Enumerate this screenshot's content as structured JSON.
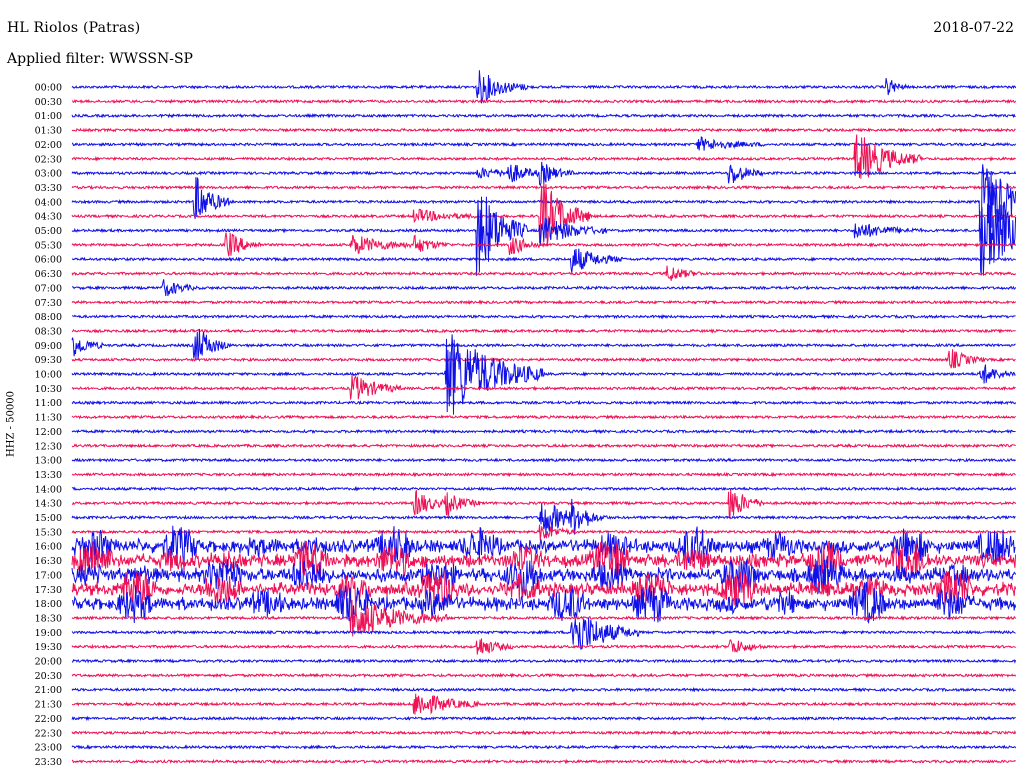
{
  "header": {
    "station": "HL Riolos (Patras)",
    "date": "2018-07-22",
    "filter": "Applied filter: WWSSN-SP"
  },
  "chart_data": {
    "type": "line",
    "title": "HL Riolos (Patras)",
    "ylabel": "HHZ - 50000",
    "colors": {
      "even_rows": "#1010e8",
      "odd_rows": "#ee1155"
    },
    "rows": [
      "00:00",
      "00:30",
      "01:00",
      "01:30",
      "02:00",
      "02:30",
      "03:00",
      "03:30",
      "04:00",
      "04:30",
      "05:00",
      "05:30",
      "06:00",
      "06:30",
      "07:00",
      "07:30",
      "08:00",
      "08:30",
      "09:00",
      "09:30",
      "10:00",
      "10:30",
      "11:00",
      "11:30",
      "12:00",
      "12:30",
      "13:00",
      "13:30",
      "14:00",
      "14:30",
      "15:00",
      "15:30",
      "16:00",
      "16:30",
      "17:00",
      "17:30",
      "18:00",
      "18:30",
      "19:00",
      "19:30",
      "20:00",
      "20:30",
      "21:00",
      "21:30",
      "22:00",
      "22:30",
      "23:00",
      "23:30"
    ],
    "row_minutes": 30,
    "events": [
      {
        "row": 0,
        "minute": 13,
        "amplitude": 1.0,
        "duration": 1.5
      },
      {
        "row": 0,
        "minute": 26,
        "amplitude": 0.5,
        "duration": 0.5
      },
      {
        "row": 4,
        "minute": 20,
        "amplitude": 0.4,
        "duration": 2
      },
      {
        "row": 5,
        "minute": 25,
        "amplitude": 1.6,
        "duration": 2
      },
      {
        "row": 6,
        "minute": 13,
        "amplitude": 0.3,
        "duration": 2
      },
      {
        "row": 6,
        "minute": 14,
        "amplitude": 0.5,
        "duration": 1
      },
      {
        "row": 6,
        "minute": 15,
        "amplitude": 0.6,
        "duration": 1
      },
      {
        "row": 6,
        "minute": 21,
        "amplitude": 0.7,
        "duration": 1
      },
      {
        "row": 8,
        "minute": 4,
        "amplitude": 1.5,
        "duration": 1
      },
      {
        "row": 8,
        "minute": 29,
        "amplitude": 2.5,
        "duration": 2
      },
      {
        "row": 9,
        "minute": 11,
        "amplitude": 0.4,
        "duration": 2
      },
      {
        "row": 9,
        "minute": 15,
        "amplitude": 2.2,
        "duration": 1.5
      },
      {
        "row": 10,
        "minute": 13,
        "amplitude": 2.8,
        "duration": 1.5
      },
      {
        "row": 10,
        "minute": 15,
        "amplitude": 0.9,
        "duration": 2
      },
      {
        "row": 10,
        "minute": 25,
        "amplitude": 0.5,
        "duration": 2
      },
      {
        "row": 10,
        "minute": 29,
        "amplitude": 3.0,
        "duration": 2
      },
      {
        "row": 11,
        "minute": 5,
        "amplitude": 0.8,
        "duration": 1
      },
      {
        "row": 11,
        "minute": 9,
        "amplitude": 0.6,
        "duration": 2
      },
      {
        "row": 11,
        "minute": 11,
        "amplitude": 0.5,
        "duration": 1
      },
      {
        "row": 11,
        "minute": 14,
        "amplitude": 0.6,
        "duration": 1
      },
      {
        "row": 12,
        "minute": 16,
        "amplitude": 0.8,
        "duration": 1.5
      },
      {
        "row": 13,
        "minute": 19,
        "amplitude": 0.5,
        "duration": 1
      },
      {
        "row": 14,
        "minute": 3,
        "amplitude": 0.5,
        "duration": 1
      },
      {
        "row": 18,
        "minute": 0,
        "amplitude": 0.8,
        "duration": 1
      },
      {
        "row": 18,
        "minute": 4,
        "amplitude": 1.2,
        "duration": 1
      },
      {
        "row": 19,
        "minute": 28,
        "amplitude": 0.6,
        "duration": 1
      },
      {
        "row": 20,
        "minute": 12,
        "amplitude": 2.8,
        "duration": 3
      },
      {
        "row": 20,
        "minute": 29,
        "amplitude": 0.6,
        "duration": 1
      },
      {
        "row": 21,
        "minute": 9,
        "amplitude": 0.8,
        "duration": 1.5
      },
      {
        "row": 29,
        "minute": 11,
        "amplitude": 0.8,
        "duration": 1
      },
      {
        "row": 29,
        "minute": 12,
        "amplitude": 0.6,
        "duration": 1
      },
      {
        "row": 29,
        "minute": 21,
        "amplitude": 1.0,
        "duration": 1
      },
      {
        "row": 30,
        "minute": 15,
        "amplitude": 1.2,
        "duration": 1.5
      },
      {
        "row": 30,
        "minute": 16,
        "amplitude": 0.8,
        "duration": 1
      },
      {
        "row": 31,
        "minute": 15,
        "amplitude": 0.5,
        "duration": 1
      },
      {
        "row": 37,
        "minute": 9,
        "amplitude": 1.3,
        "duration": 3
      },
      {
        "row": 38,
        "minute": 16,
        "amplitude": 1.6,
        "duration": 2
      },
      {
        "row": 39,
        "minute": 13,
        "amplitude": 0.6,
        "duration": 1
      },
      {
        "row": 39,
        "minute": 21,
        "amplitude": 0.5,
        "duration": 1
      },
      {
        "row": 43,
        "minute": 11,
        "amplitude": 0.8,
        "duration": 2
      }
    ],
    "noisy_rows": [
      32,
      33,
      34,
      35,
      36
    ]
  }
}
